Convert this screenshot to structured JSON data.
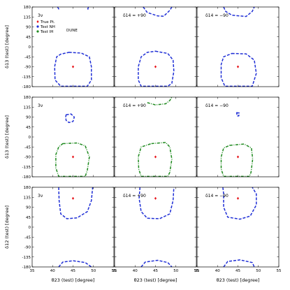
{
  "chart_data": {
    "type": "contour-grid",
    "xlabel": "θ23 (test) [degree]",
    "xlim": [
      35,
      55
    ],
    "ylim": [
      -180,
      180
    ],
    "xticks": [
      35,
      40,
      45,
      50,
      55
    ],
    "yticks": [
      -180,
      -135,
      -90,
      -45,
      0,
      45,
      90,
      135,
      180
    ],
    "legend": {
      "placement": "top-left",
      "entries": [
        {
          "label": "True Pt.",
          "color": "#e8141b",
          "marker": "diamond"
        },
        {
          "label": "Test NH",
          "color": "#1f2fd6",
          "marker": "circle"
        },
        {
          "label": "Test IH",
          "color": "#1f8a1f",
          "marker": "circle"
        }
      ],
      "extra_text": "DUNE"
    },
    "rows": [
      {
        "ylabel": "δ13 (test) [degree]",
        "true_point": {
          "x": 45,
          "y": -90
        },
        "panels": [
          {
            "label": "3ν",
            "contours": [
              {
                "series": "Test NH",
                "style": "dashed",
                "closed": true,
                "points": [
                  [
                    44,
                    -25
                  ],
                  [
                    47,
                    -28
                  ],
                  [
                    49,
                    -45
                  ],
                  [
                    49.5,
                    -90
                  ],
                  [
                    49.5,
                    -150
                  ],
                  [
                    48.5,
                    -178
                  ],
                  [
                    42,
                    -178
                  ],
                  [
                    40.6,
                    -150
                  ],
                  [
                    40.5,
                    -90
                  ],
                  [
                    41,
                    -45
                  ],
                  [
                    42,
                    -33
                  ]
                ]
              },
              {
                "series": "Test NH",
                "style": "dashed",
                "closed": false,
                "points": [
                  [
                    41.2,
                    180
                  ],
                  [
                    41.5,
                    172
                  ],
                  [
                    41.3,
                    165
                  ]
                ]
              },
              {
                "series": "Test NH",
                "style": "dashed",
                "closed": false,
                "points": [
                  [
                    48.8,
                    180
                  ],
                  [
                    48.6,
                    172
                  ],
                  [
                    48.9,
                    165
                  ]
                ]
              }
            ]
          },
          {
            "label": "δ14 = +90",
            "contours": [
              {
                "series": "Test NH",
                "style": "dashed",
                "closed": true,
                "points": [
                  [
                    45,
                    -20
                  ],
                  [
                    48,
                    -30
                  ],
                  [
                    49.3,
                    -60
                  ],
                  [
                    49.5,
                    -110
                  ],
                  [
                    49,
                    -165
                  ],
                  [
                    48,
                    -178
                  ],
                  [
                    41.5,
                    -178
                  ],
                  [
                    40.8,
                    -150
                  ],
                  [
                    40.8,
                    -90
                  ],
                  [
                    41.5,
                    -45
                  ],
                  [
                    43,
                    -25
                  ]
                ]
              },
              {
                "series": "Test NH",
                "style": "dashed",
                "closed": false,
                "points": [
                  [
                    42,
                    180
                  ],
                  [
                    43,
                    155
                  ],
                  [
                    45.5,
                    140
                  ],
                  [
                    47,
                    138
                  ],
                  [
                    48.5,
                    165
                  ],
                  [
                    49,
                    180
                  ]
                ]
              }
            ]
          },
          {
            "label": "δ14 = −90",
            "contours": [
              {
                "series": "Test NH",
                "style": "dashed",
                "closed": true,
                "points": [
                  [
                    43.5,
                    -30
                  ],
                  [
                    47,
                    -32
                  ],
                  [
                    49,
                    -60
                  ],
                  [
                    49.5,
                    -120
                  ],
                  [
                    48.5,
                    -178
                  ],
                  [
                    41.8,
                    -178
                  ],
                  [
                    40.9,
                    -140
                  ],
                  [
                    40.9,
                    -80
                  ],
                  [
                    41.5,
                    -45
                  ]
                ]
              },
              {
                "series": "Test NH",
                "style": "dashed",
                "closed": false,
                "points": [
                  [
                    41.5,
                    180
                  ],
                  [
                    42,
                    160
                  ],
                  [
                    43.5,
                    143
                  ],
                  [
                    47,
                    137
                  ],
                  [
                    48.5,
                    160
                  ],
                  [
                    49,
                    180
                  ]
                ]
              }
            ]
          }
        ]
      },
      {
        "ylabel": "δ13 (test) [degree]",
        "true_point": {
          "x": 45,
          "y": -90
        },
        "panels": [
          {
            "label": "3ν",
            "contours": [
              {
                "series": "Test NH",
                "style": "dashed",
                "closed": true,
                "points": [
                  [
                    43.3,
                    100
                  ],
                  [
                    44.5,
                    104
                  ],
                  [
                    45.3,
                    90
                  ],
                  [
                    45,
                    70
                  ],
                  [
                    44,
                    65
                  ],
                  [
                    43.3,
                    75
                  ],
                  [
                    43.2,
                    90
                  ]
                ]
              },
              {
                "series": "Test IH",
                "style": "dashdot",
                "closed": true,
                "points": [
                  [
                    42.5,
                    -30
                  ],
                  [
                    46,
                    -27
                  ],
                  [
                    48,
                    -40
                  ],
                  [
                    49,
                    -90
                  ],
                  [
                    48.5,
                    -150
                  ],
                  [
                    48,
                    -178
                  ],
                  [
                    41.5,
                    -178
                  ],
                  [
                    40.8,
                    -140
                  ],
                  [
                    40.8,
                    -80
                  ],
                  [
                    41.5,
                    -45
                  ]
                ]
              }
            ]
          },
          {
            "label": "δ14 = +90",
            "contours": [
              {
                "series": "Test IH",
                "style": "dashdot",
                "closed": true,
                "points": [
                  [
                    44,
                    -30
                  ],
                  [
                    47.5,
                    -25
                  ],
                  [
                    48.5,
                    -45
                  ],
                  [
                    49,
                    -100
                  ],
                  [
                    48.5,
                    -160
                  ],
                  [
                    48,
                    -178
                  ],
                  [
                    41.5,
                    -178
                  ],
                  [
                    40.9,
                    -145
                  ],
                  [
                    40.8,
                    -90
                  ],
                  [
                    41.5,
                    -45
                  ]
                ]
              },
              {
                "series": "Test IH",
                "style": "dashdot",
                "closed": false,
                "points": [
                  [
                    43,
                    155
                  ],
                  [
                    45,
                    145
                  ],
                  [
                    47.5,
                    150
                  ],
                  [
                    48.5,
                    165
                  ],
                  [
                    49,
                    180
                  ]
                ]
              }
            ]
          },
          {
            "label": "δ14 = −90",
            "contours": [
              {
                "series": "Test NH",
                "style": "dashed",
                "closed": true,
                "points": [
                  [
                    44.7,
                    110
                  ],
                  [
                    45.3,
                    108
                  ],
                  [
                    45.2,
                    95
                  ],
                  [
                    44.8,
                    95
                  ]
                ]
              },
              {
                "series": "Test IH",
                "style": "dashdot",
                "closed": true,
                "points": [
                  [
                    43,
                    -38
                  ],
                  [
                    46.5,
                    -32
                  ],
                  [
                    48.3,
                    -50
                  ],
                  [
                    48.6,
                    -100
                  ],
                  [
                    48.2,
                    -160
                  ],
                  [
                    47.8,
                    -178
                  ],
                  [
                    41.5,
                    -178
                  ],
                  [
                    40.9,
                    -145
                  ],
                  [
                    40.9,
                    -90
                  ],
                  [
                    41.5,
                    -50
                  ]
                ]
              }
            ]
          }
        ]
      },
      {
        "ylabel": "δ12 (test) [degree]",
        "true_point": {
          "x": 45,
          "y": 130
        },
        "panels": [
          {
            "label": "3ν",
            "contours": [
              {
                "series": "Test NH",
                "style": "dashed",
                "closed": false,
                "points": [
                  [
                    41.5,
                    180
                  ],
                  [
                    41.6,
                    120
                  ],
                  [
                    42,
                    60
                  ],
                  [
                    43.5,
                    38
                  ],
                  [
                    46,
                    42
                  ],
                  [
                    48.5,
                    70
                  ],
                  [
                    49.5,
                    120
                  ],
                  [
                    49.8,
                    180
                  ]
                ]
              },
              {
                "series": "Test NH",
                "style": "dashed",
                "closed": false,
                "points": [
                  [
                    41.5,
                    -180
                  ],
                  [
                    42.5,
                    -158
                  ],
                  [
                    45,
                    -152
                  ],
                  [
                    48,
                    -160
                  ],
                  [
                    49.5,
                    -180
                  ]
                ]
              }
            ]
          },
          {
            "label": "δ14 = +90",
            "contours": [
              {
                "series": "Test NH",
                "style": "dashed",
                "closed": false,
                "points": [
                  [
                    41.2,
                    180
                  ],
                  [
                    41,
                    130
                  ],
                  [
                    41.5,
                    70
                  ],
                  [
                    43,
                    40
                  ],
                  [
                    46,
                    38
                  ],
                  [
                    48.5,
                    60
                  ],
                  [
                    49.3,
                    120
                  ],
                  [
                    49.5,
                    180
                  ]
                ]
              },
              {
                "series": "Test NH",
                "style": "dashed",
                "closed": false,
                "points": [
                  [
                    41.5,
                    -180
                  ],
                  [
                    42.5,
                    -158
                  ],
                  [
                    45.5,
                    -150
                  ],
                  [
                    48,
                    -160
                  ],
                  [
                    49,
                    -180
                  ]
                ]
              }
            ]
          },
          {
            "label": "δ14 = −90",
            "contours": [
              {
                "series": "Test NH",
                "style": "dashed",
                "closed": false,
                "points": [
                  [
                    41.3,
                    180
                  ],
                  [
                    41.5,
                    150
                  ],
                  [
                    41.5,
                    90
                  ],
                  [
                    42.5,
                    45
                  ],
                  [
                    45.5,
                    36
                  ],
                  [
                    48,
                    50
                  ],
                  [
                    49.5,
                    100
                  ],
                  [
                    49.5,
                    150
                  ],
                  [
                    48.5,
                    180
                  ]
                ]
              },
              {
                "series": "Test NH",
                "style": "dashed",
                "closed": false,
                "points": [
                  [
                    41.5,
                    -180
                  ],
                  [
                    42.5,
                    -155
                  ],
                  [
                    45.5,
                    -148
                  ],
                  [
                    48.5,
                    -160
                  ],
                  [
                    49,
                    -180
                  ]
                ]
              }
            ]
          }
        ]
      }
    ]
  }
}
